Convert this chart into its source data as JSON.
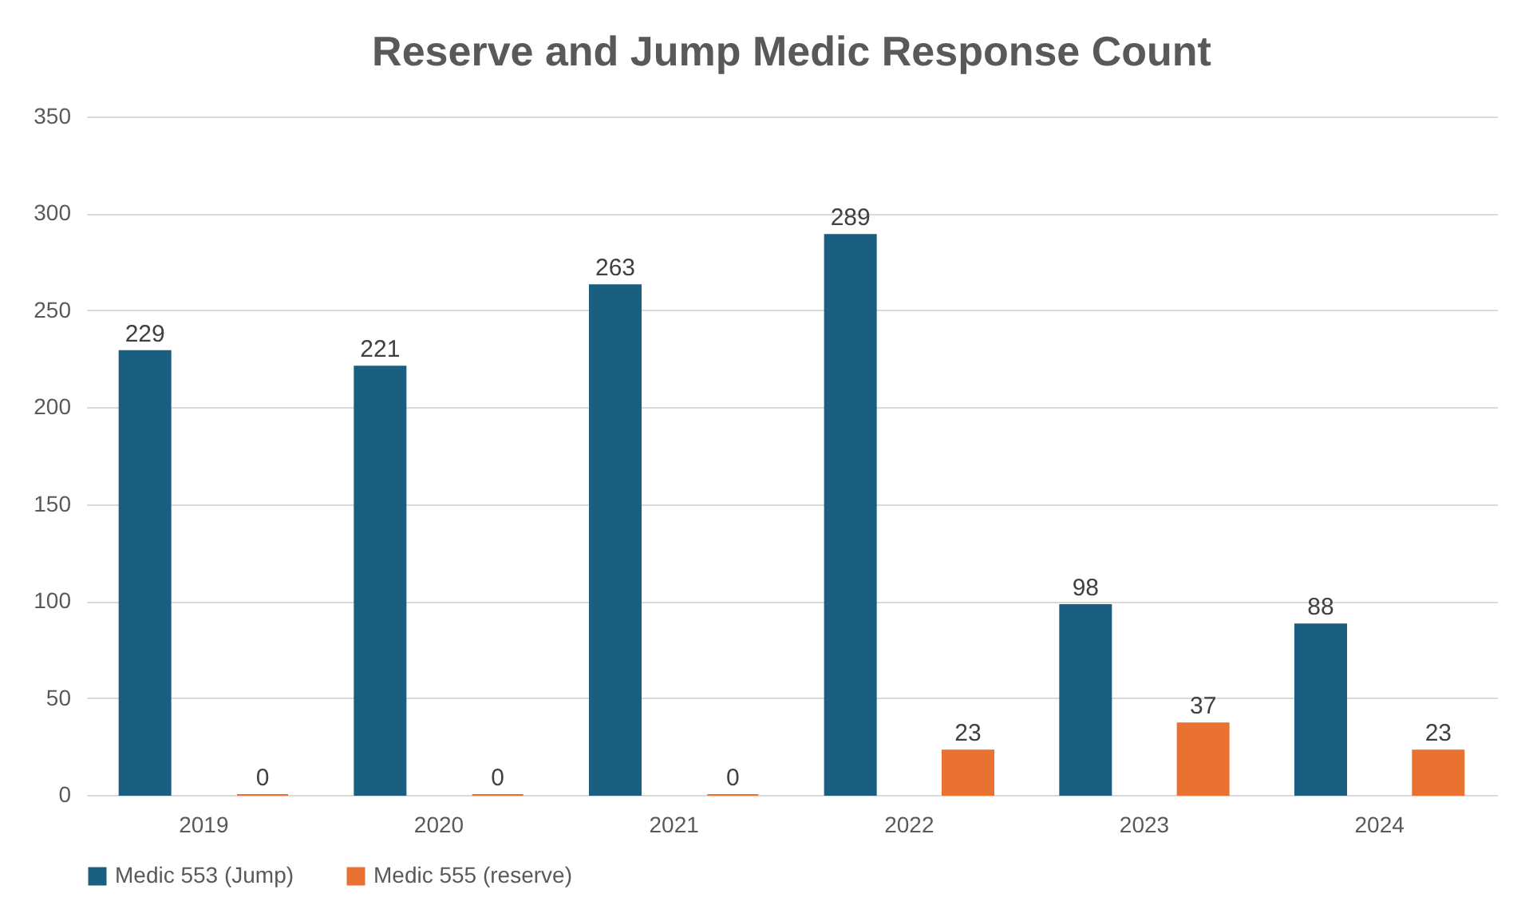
{
  "chart_data": {
    "type": "bar",
    "title": "Reserve and Jump Medic Response Count",
    "categories": [
      "2019",
      "2020",
      "2021",
      "2022",
      "2023",
      "2024"
    ],
    "series": [
      {
        "name": "Medic 553 (Jump)",
        "color": "#1a5e80",
        "values": [
          229,
          221,
          263,
          289,
          98,
          88
        ]
      },
      {
        "name": "Medic 555 (reserve)",
        "color": "#e97132",
        "values": [
          0,
          0,
          0,
          23,
          37,
          23
        ]
      }
    ],
    "ylim": [
      0,
      350
    ],
    "yticks": [
      0,
      50,
      100,
      150,
      200,
      250,
      300,
      350
    ],
    "grid": "y",
    "legend": "bottom",
    "data_labels": true
  }
}
